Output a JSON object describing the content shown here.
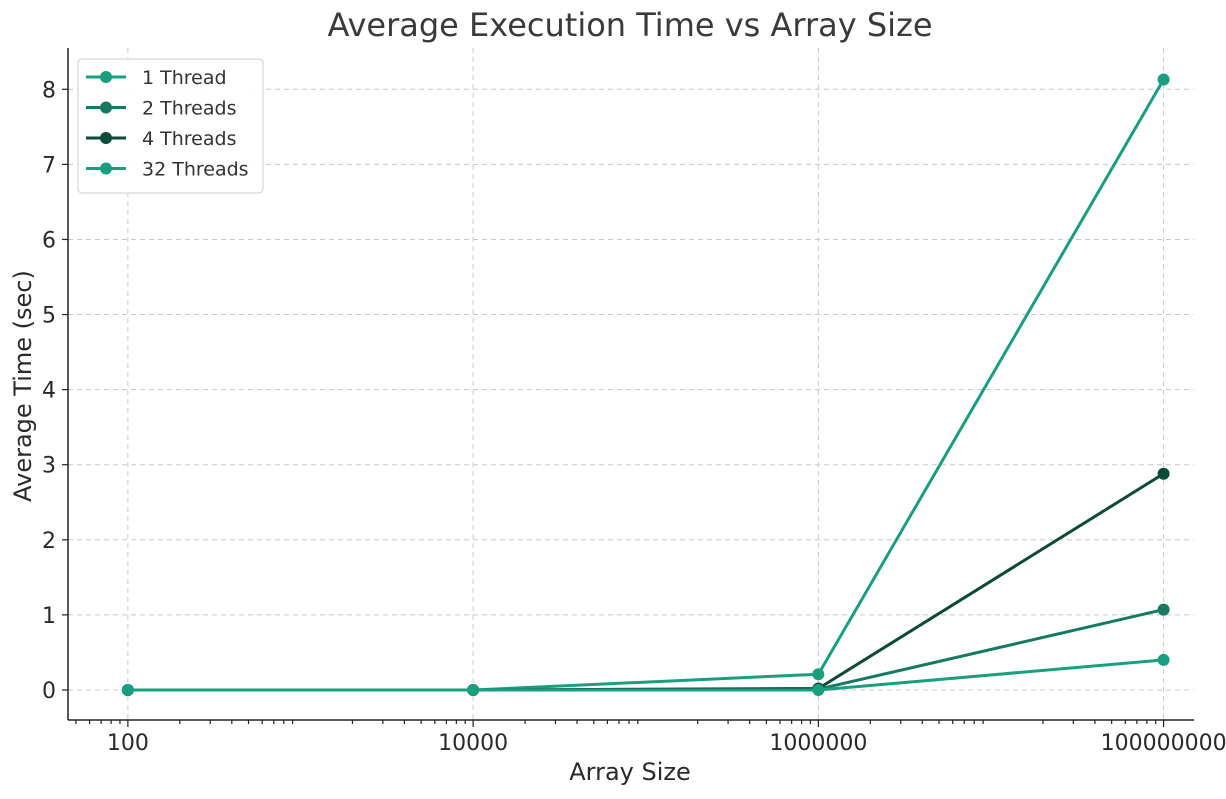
{
  "chart_data": {
    "type": "line",
    "title": "Average Execution Time vs Array Size",
    "xlabel": "Array Size",
    "ylabel": "Average Time (sec)",
    "x_scale": "log",
    "x": [
      100,
      10000,
      1000000,
      100000000
    ],
    "x_tick_labels": [
      "100",
      "10000",
      "1000000",
      "100000000"
    ],
    "xlim": [
      45,
      150000000
    ],
    "ylim": [
      -0.4,
      8.55
    ],
    "y_ticks": [
      0,
      1,
      2,
      3,
      4,
      5,
      6,
      7,
      8
    ],
    "y_tick_labels": [
      "0",
      "1",
      "2",
      "3",
      "4",
      "5",
      "6",
      "7",
      "8"
    ],
    "grid": true,
    "legend_position": "top-left",
    "series": [
      {
        "name": "1 Thread",
        "color": "#1a9e80",
        "values": [
          0.0,
          0.0,
          0.21,
          8.13
        ]
      },
      {
        "name": "2 Threads",
        "color": "#177a60",
        "values": [
          0.0,
          0.0,
          0.01,
          1.07
        ]
      },
      {
        "name": "4 Threads",
        "color": "#0b4a38",
        "values": [
          0.0,
          0.0,
          0.02,
          2.88
        ]
      },
      {
        "name": "32 Threads",
        "color": "#1a9e80",
        "values": [
          0.0,
          0.0,
          0.0,
          0.4
        ]
      }
    ]
  }
}
